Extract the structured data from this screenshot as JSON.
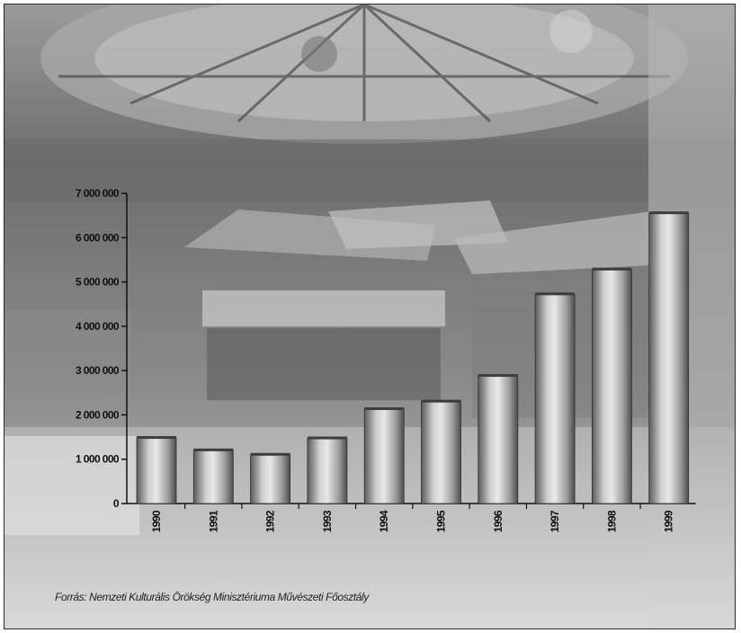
{
  "chart_data": {
    "type": "bar",
    "title": "",
    "xlabel": "",
    "ylabel": "",
    "categories": [
      "1990",
      "1991",
      "1992",
      "1993",
      "1994",
      "1995",
      "1996",
      "1997",
      "1998",
      "1999"
    ],
    "values": [
      1480000,
      1200000,
      1100000,
      1470000,
      2130000,
      2300000,
      2880000,
      4720000,
      5280000,
      6550000
    ],
    "ylim": [
      0,
      7000000
    ],
    "yticks": [
      0,
      1000000,
      2000000,
      3000000,
      4000000,
      5000000,
      6000000,
      7000000
    ],
    "ytick_labels": [
      "0",
      "1 000 000",
      "2 000 000",
      "3 000 000",
      "4 000 000",
      "5 000 000",
      "6 000 000",
      "7 000 000"
    ],
    "grid": false,
    "legend": "none",
    "bar_color": "#8c8c8c"
  },
  "source_note": "Forrás: Nemzeti Kulturális Örökség Minisztériuma Művészeti Főosztály"
}
